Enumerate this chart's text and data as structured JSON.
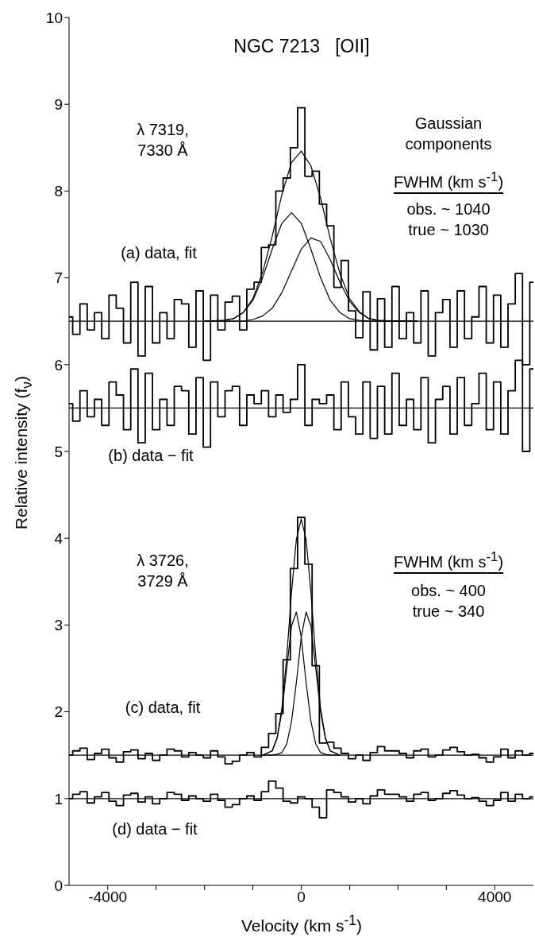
{
  "chart_data": {
    "type": "step",
    "title": "NGC 7213   [OII]",
    "xlabel": "Velocity (km s$^{-1}$)",
    "ylabel": "Relative intensity (f$_{ν}$)",
    "annotations": [
      "λ 7319,\n7330 Å",
      "Gaussian\ncomponents",
      "FWHM (km s$^{-1}$)",
      "obs. ~ 1040\ntrue ~ 1030",
      "(a) data, fit",
      "(b) data − fit",
      "λ 3726,\n3729 Å",
      "FWHM (km s$^{-1}$)",
      "obs. ~ 400\ntrue ~ 340",
      "(c) data, fit",
      "(d) data − fit"
    ],
    "x": [
      -4800,
      -4650,
      -4500,
      -4350,
      -4200,
      -4050,
      -3900,
      -3750,
      -3600,
      -3450,
      -3300,
      -3150,
      -3000,
      -2850,
      -2700,
      -2550,
      -2400,
      -2250,
      -2100,
      -1950,
      -1800,
      -1650,
      -1500,
      -1350,
      -1200,
      -1050,
      -900,
      -750,
      -600,
      -450,
      -300,
      -150,
      0,
      150,
      300,
      450,
      600,
      750,
      900,
      1050,
      1200,
      1350,
      1500,
      1650,
      1800,
      1950,
      2100,
      2250,
      2400,
      2550,
      2700,
      2850,
      3000,
      3150,
      3300,
      3450,
      3600,
      3750,
      3900,
      4050,
      4200,
      4350,
      4500,
      4650,
      4800
    ],
    "series": [
      {
        "color": "#000000",
        "values": [
          6.55,
          6.35,
          6.7,
          6.4,
          6.6,
          6.3,
          6.8,
          6.65,
          6.25,
          6.95,
          6.1,
          6.9,
          6.25,
          6.6,
          6.3,
          6.75,
          6.7,
          6.2,
          6.85,
          6.05,
          6.8,
          6.4,
          6.72,
          6.79,
          6.4,
          6.87,
          6.95,
          7.35,
          7.38,
          8.0,
          8.15,
          8.5,
          8.96,
          8.17,
          8.23,
          7.85,
          7.6,
          6.89,
          7.2,
          6.62,
          6.31,
          6.84,
          6.17,
          6.76,
          6.2,
          6.9,
          6.3,
          6.6,
          6.25,
          6.85,
          6.1,
          6.6,
          6.75,
          6.2,
          6.85,
          6.3,
          6.55,
          6.9,
          6.25,
          6.8,
          6.2,
          6.7,
          7.05,
          6.0,
          6.95
        ]
      },
      {
        "type": "line",
        "color": "#000000",
        "x": [
          -2000,
          -1600,
          -1400,
          -1200,
          -1000,
          -800,
          -600,
          -400,
          -200,
          0,
          200,
          400,
          600,
          800,
          1000,
          1200,
          1400,
          1600,
          2000,
          2400
        ],
        "values": [
          6.5,
          6.51,
          6.53,
          6.6,
          6.76,
          7.06,
          7.48,
          7.96,
          8.33,
          8.46,
          8.29,
          7.92,
          7.45,
          7.05,
          6.76,
          6.61,
          6.53,
          6.51,
          6.5,
          6.5
        ]
      },
      {
        "type": "line",
        "color": "#000000",
        "x": [
          -2000,
          -1600,
          -1400,
          -1200,
          -1000,
          -800,
          -600,
          -400,
          -200,
          0,
          200,
          400,
          600,
          800,
          1000,
          1200,
          1400,
          1600,
          2000,
          2400
        ],
        "values": [
          6.5,
          6.51,
          6.53,
          6.6,
          6.74,
          7.0,
          7.33,
          7.63,
          7.75,
          7.63,
          7.33,
          7.0,
          6.74,
          6.6,
          6.53,
          6.51,
          6.5,
          6.5,
          6.5,
          6.5
        ]
      },
      {
        "type": "line",
        "color": "#000000",
        "x": [
          -2000,
          -1600,
          -1400,
          -1200,
          -1000,
          -800,
          -600,
          -400,
          -200,
          0,
          200,
          400,
          600,
          800,
          1000,
          1200,
          1400,
          1600,
          2000,
          2400
        ],
        "values": [
          6.5,
          6.5,
          6.5,
          6.5,
          6.52,
          6.56,
          6.65,
          6.83,
          7.08,
          7.33,
          7.46,
          7.42,
          7.21,
          6.95,
          6.73,
          6.6,
          6.53,
          6.51,
          6.5,
          6.5
        ]
      },
      {
        "color": "#000000",
        "values": [
          5.55,
          5.35,
          5.7,
          5.4,
          5.6,
          5.3,
          5.8,
          5.65,
          5.25,
          5.95,
          5.1,
          5.9,
          5.25,
          5.6,
          5.3,
          5.75,
          5.7,
          5.2,
          5.85,
          5.05,
          5.8,
          5.4,
          5.7,
          5.75,
          5.3,
          5.65,
          5.55,
          5.7,
          5.4,
          5.65,
          5.45,
          5.6,
          6.0,
          5.3,
          5.6,
          5.55,
          5.65,
          5.25,
          5.8,
          5.4,
          5.2,
          5.8,
          5.15,
          5.75,
          5.2,
          5.9,
          5.3,
          5.6,
          5.25,
          5.85,
          5.1,
          5.6,
          5.75,
          5.2,
          5.85,
          5.3,
          5.55,
          5.9,
          5.25,
          5.8,
          5.2,
          5.7,
          6.05,
          5.0,
          5.95
        ]
      },
      {
        "color": "#000000",
        "values": [
          1.5,
          1.55,
          1.58,
          1.45,
          1.52,
          1.57,
          1.47,
          1.42,
          1.54,
          1.56,
          1.46,
          1.52,
          1.44,
          1.5,
          1.57,
          1.55,
          1.48,
          1.53,
          1.5,
          1.47,
          1.55,
          1.48,
          1.4,
          1.43,
          1.5,
          1.53,
          1.48,
          1.59,
          1.75,
          1.98,
          2.6,
          3.65,
          4.24,
          3.7,
          2.53,
          1.64,
          1.65,
          1.58,
          1.52,
          1.46,
          1.5,
          1.44,
          1.53,
          1.6,
          1.55,
          1.55,
          1.52,
          1.47,
          1.55,
          1.57,
          1.48,
          1.5,
          1.56,
          1.59,
          1.54,
          1.5,
          1.51,
          1.47,
          1.42,
          1.48,
          1.57,
          1.47,
          1.55,
          1.5,
          1.52
        ]
      },
      {
        "type": "line",
        "color": "#000000",
        "x": [
          -800,
          -600,
          -500,
          -400,
          -300,
          -200,
          -100,
          0,
          100,
          200,
          300,
          400,
          500,
          600,
          800
        ],
        "values": [
          1.5,
          1.55,
          1.7,
          2.04,
          2.63,
          3.38,
          3.99,
          4.22,
          3.99,
          3.38,
          2.63,
          2.04,
          1.7,
          1.55,
          1.5
        ]
      },
      {
        "type": "line",
        "color": "#000000",
        "x": [
          -800,
          -600,
          -500,
          -400,
          -300,
          -200,
          -100,
          0,
          100,
          200,
          300,
          400,
          500,
          600,
          800
        ],
        "values": [
          1.5,
          1.55,
          1.69,
          2.0,
          2.5,
          2.99,
          3.15,
          2.86,
          2.34,
          1.89,
          1.63,
          1.53,
          1.51,
          1.5,
          1.5
        ]
      },
      {
        "type": "line",
        "color": "#000000",
        "x": [
          -800,
          -600,
          -500,
          -400,
          -300,
          -200,
          -100,
          0,
          100,
          200,
          300,
          400,
          500,
          600,
          800
        ],
        "values": [
          1.5,
          1.5,
          1.51,
          1.53,
          1.63,
          1.89,
          2.34,
          2.86,
          3.15,
          2.99,
          2.5,
          2.0,
          1.69,
          1.55,
          1.5
        ]
      },
      {
        "color": "#000000",
        "values": [
          1.0,
          1.05,
          1.08,
          0.95,
          1.02,
          1.07,
          0.97,
          0.92,
          1.04,
          1.06,
          0.96,
          1.02,
          0.94,
          1.0,
          1.07,
          1.05,
          0.98,
          1.03,
          1.0,
          0.97,
          1.05,
          0.98,
          0.9,
          0.93,
          1.0,
          1.03,
          0.98,
          1.08,
          1.2,
          1.12,
          0.97,
          0.95,
          1.02,
          1.0,
          0.9,
          0.78,
          1.1,
          1.07,
          1.02,
          0.96,
          1.0,
          0.94,
          1.03,
          1.1,
          1.05,
          1.05,
          1.02,
          0.97,
          1.05,
          1.07,
          0.98,
          1.0,
          1.06,
          1.09,
          1.04,
          1.0,
          1.01,
          0.97,
          0.92,
          0.98,
          1.07,
          0.97,
          1.05,
          1.0,
          1.02
        ]
      }
    ],
    "ref_lines": [
      {
        "axis": "y",
        "value": 6.5,
        "color": "#000000"
      },
      {
        "axis": "y",
        "value": 5.5,
        "color": "#000000"
      },
      {
        "axis": "y",
        "value": 1.5,
        "color": "#000000"
      },
      {
        "axis": "y",
        "value": 1.0,
        "color": "#000000"
      }
    ],
    "xlim": [
      -4800,
      4800
    ],
    "xticks": [
      -4000,
      {
        "value": -3000,
        "label": null
      },
      {
        "value": -2000,
        "label": null
      },
      {
        "value": -1000,
        "label": null
      },
      0,
      {
        "value": 1000,
        "label": null
      },
      {
        "value": 2000,
        "label": null
      },
      {
        "value": 3000,
        "label": null
      },
      4000
    ],
    "ylim": [
      0,
      10
    ],
    "yticks": [
      0,
      1,
      2,
      3,
      4,
      5,
      6,
      7,
      8,
      9,
      10
    ],
    "line_style": "solid"
  }
}
